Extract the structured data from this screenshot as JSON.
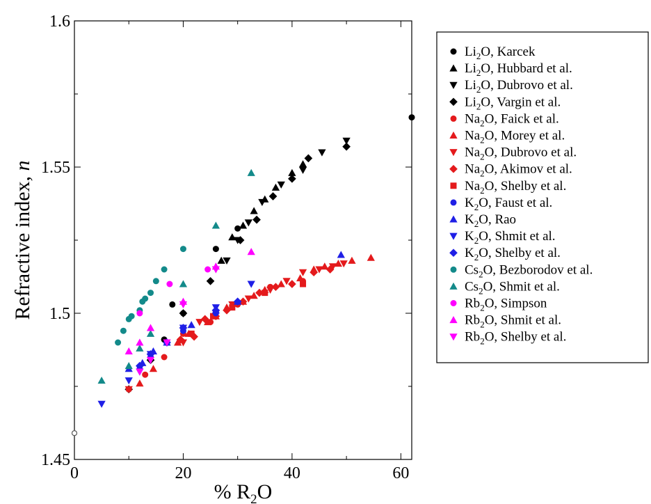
{
  "chart_data": {
    "type": "scatter",
    "title": "",
    "xlabel": {
      "pre": "% R",
      "sub": "2",
      "post": "O"
    },
    "ylabel": {
      "pre": "Refractive index, ",
      "italic": "n"
    },
    "xlim": [
      0,
      62
    ],
    "ylim": [
      1.45,
      1.6
    ],
    "xticks": [
      0,
      20,
      40,
      60
    ],
    "yticks": [
      1.45,
      1.5,
      1.55,
      1.6
    ],
    "xtick_labels": [
      "0",
      "20",
      "40",
      "60"
    ],
    "ytick_labels": [
      "1.45",
      "1.5",
      "1.55",
      "1.6"
    ],
    "grid": false,
    "legend_position": "right",
    "reference_points": [
      {
        "label": "",
        "marker": "open-circle",
        "color": "#555555",
        "points": [
          [
            0,
            1.459
          ]
        ]
      }
    ],
    "series": [
      {
        "oxide": "Li",
        "sub": "2",
        "suffix": "O, Karcek",
        "marker": "circle",
        "color": "#000000",
        "points": [
          [
            62,
            1.567
          ],
          [
            30,
            1.529
          ],
          [
            26,
            1.522
          ],
          [
            18,
            1.503
          ],
          [
            20,
            1.5
          ],
          [
            16.5,
            1.491
          ],
          [
            10,
            1.474
          ]
        ]
      },
      {
        "oxide": "Li",
        "sub": "2",
        "suffix": "O, Hubbard et al.",
        "marker": "triangle-up",
        "color": "#000000",
        "points": [
          [
            42,
            1.551
          ],
          [
            40,
            1.548
          ],
          [
            37,
            1.543
          ],
          [
            35,
            1.539
          ],
          [
            33,
            1.535
          ],
          [
            31,
            1.53
          ],
          [
            29,
            1.526
          ],
          [
            27,
            1.518
          ]
        ]
      },
      {
        "oxide": "Li",
        "sub": "2",
        "suffix": "O, Dubrovo et al.",
        "marker": "triangle-down",
        "color": "#000000",
        "points": [
          [
            50,
            1.559
          ],
          [
            45.5,
            1.555
          ],
          [
            42,
            1.549
          ],
          [
            38,
            1.544
          ],
          [
            34.5,
            1.538
          ],
          [
            32,
            1.531
          ],
          [
            30,
            1.525
          ],
          [
            28,
            1.518
          ]
        ]
      },
      {
        "oxide": "Li",
        "sub": "2",
        "suffix": "O, Vargin et al.",
        "marker": "diamond",
        "color": "#000000",
        "points": [
          [
            50,
            1.557
          ],
          [
            43,
            1.553
          ],
          [
            40,
            1.546
          ],
          [
            36.5,
            1.54
          ],
          [
            33.5,
            1.532
          ],
          [
            30.5,
            1.525
          ],
          [
            25,
            1.511
          ],
          [
            20,
            1.5
          ],
          [
            14,
            1.484
          ],
          [
            10,
            1.474
          ]
        ]
      },
      {
        "oxide": "Na",
        "sub": "2",
        "suffix": "O, Faick et al.",
        "marker": "circle",
        "color": "#e41a1c",
        "points": [
          [
            42,
            1.511
          ],
          [
            36,
            1.509
          ],
          [
            30,
            1.503
          ],
          [
            25,
            1.497
          ],
          [
            20,
            1.493
          ],
          [
            16.5,
            1.485
          ],
          [
            13,
            1.479
          ],
          [
            10,
            1.474
          ]
        ]
      },
      {
        "oxide": "Na",
        "sub": "2",
        "suffix": "O, Morey et al.",
        "marker": "triangle-up",
        "color": "#e41a1c",
        "points": [
          [
            54.5,
            1.519
          ],
          [
            51,
            1.518
          ],
          [
            48.5,
            1.517
          ],
          [
            46,
            1.516
          ],
          [
            44,
            1.515
          ],
          [
            41.5,
            1.512
          ],
          [
            38,
            1.51
          ],
          [
            35,
            1.508
          ],
          [
            33,
            1.506
          ],
          [
            31,
            1.504
          ],
          [
            28,
            1.502
          ],
          [
            26,
            1.499
          ],
          [
            24.5,
            1.497
          ],
          [
            21,
            1.493
          ],
          [
            19,
            1.49
          ],
          [
            14.5,
            1.481
          ],
          [
            12,
            1.476
          ]
        ]
      },
      {
        "oxide": "Na",
        "sub": "2",
        "suffix": "O, Dubrovo et al.",
        "marker": "triangle-down",
        "color": "#e41a1c",
        "points": [
          [
            49.5,
            1.517
          ],
          [
            47.5,
            1.516
          ],
          [
            45,
            1.515
          ],
          [
            42,
            1.514
          ],
          [
            39,
            1.511
          ],
          [
            36,
            1.508
          ],
          [
            32,
            1.505
          ],
          [
            29,
            1.503
          ],
          [
            26,
            1.5
          ],
          [
            23,
            1.497
          ],
          [
            20,
            1.49
          ],
          [
            10,
            1.474
          ]
        ]
      },
      {
        "oxide": "Na",
        "sub": "2",
        "suffix": "O, Akimov et al.",
        "marker": "diamond",
        "color": "#e41a1c",
        "points": [
          [
            47,
            1.515
          ],
          [
            44,
            1.514
          ],
          [
            40,
            1.51
          ],
          [
            37,
            1.509
          ],
          [
            34,
            1.507
          ],
          [
            31,
            1.504
          ],
          [
            28,
            1.501
          ],
          [
            26,
            1.499
          ],
          [
            24,
            1.498
          ],
          [
            22,
            1.492
          ],
          [
            19.5,
            1.491
          ]
        ]
      },
      {
        "oxide": "Na",
        "sub": "2",
        "suffix": "O, Shelby et al.",
        "marker": "square",
        "color": "#e41a1c",
        "points": [
          [
            42,
            1.51
          ],
          [
            35,
            1.507
          ],
          [
            29,
            1.502
          ],
          [
            25.5,
            1.499
          ],
          [
            21.5,
            1.493
          ]
        ]
      },
      {
        "oxide": "K",
        "sub": "2",
        "suffix": "O, Faust et al.",
        "marker": "circle",
        "color": "#1f1fe6",
        "points": [
          [
            26,
            1.5
          ],
          [
            20,
            1.494
          ],
          [
            17,
            1.49
          ],
          [
            14,
            1.485
          ],
          [
            12,
            1.481
          ]
        ]
      },
      {
        "oxide": "K",
        "sub": "2",
        "suffix": "O, Rao",
        "marker": "triangle-up",
        "color": "#1f1fe6",
        "points": [
          [
            49,
            1.52
          ],
          [
            30,
            1.504
          ],
          [
            26,
            1.501
          ],
          [
            21.5,
            1.496
          ],
          [
            17,
            1.49
          ],
          [
            14.5,
            1.487
          ],
          [
            12.5,
            1.483
          ],
          [
            10,
            1.481
          ]
        ]
      },
      {
        "oxide": "K",
        "sub": "2",
        "suffix": "O, Shmit et al.",
        "marker": "triangle-down",
        "color": "#1f1fe6",
        "points": [
          [
            32.5,
            1.51
          ],
          [
            26,
            1.502
          ],
          [
            20,
            1.495
          ],
          [
            14,
            1.486
          ],
          [
            12,
            1.48
          ],
          [
            10,
            1.477
          ],
          [
            5,
            1.469
          ]
        ]
      },
      {
        "oxide": "K",
        "sub": "2",
        "suffix": "O, Shelby et al.",
        "marker": "diamond",
        "color": "#1f1fe6",
        "points": [
          [
            30,
            1.504
          ],
          [
            26,
            1.501
          ],
          [
            20,
            1.495
          ],
          [
            17,
            1.49
          ],
          [
            14,
            1.486
          ],
          [
            12,
            1.482
          ]
        ]
      },
      {
        "oxide": "Cs",
        "sub": "2",
        "suffix": "O, Bezborodov et al.",
        "marker": "circle",
        "color": "#138a8a",
        "points": [
          [
            20,
            1.522
          ],
          [
            16.5,
            1.515
          ],
          [
            15,
            1.511
          ],
          [
            14,
            1.507
          ],
          [
            13,
            1.505
          ],
          [
            12.5,
            1.504
          ],
          [
            12,
            1.501
          ],
          [
            10.5,
            1.499
          ],
          [
            10,
            1.498
          ],
          [
            9,
            1.494
          ],
          [
            8,
            1.49
          ]
        ]
      },
      {
        "oxide": "Cs",
        "sub": "2",
        "suffix": "O, Shmit et al.",
        "marker": "triangle-up",
        "color": "#138a8a",
        "points": [
          [
            32.5,
            1.548
          ],
          [
            26,
            1.53
          ],
          [
            20,
            1.51
          ],
          [
            14,
            1.493
          ],
          [
            12,
            1.488
          ],
          [
            10,
            1.482
          ],
          [
            5,
            1.477
          ]
        ]
      },
      {
        "oxide": "Rb",
        "sub": "2",
        "suffix": "O, Simpson",
        "marker": "circle",
        "color": "#ff00ff",
        "points": [
          [
            24.5,
            1.515
          ],
          [
            17.5,
            1.51
          ],
          [
            12,
            1.5
          ]
        ]
      },
      {
        "oxide": "Rb",
        "sub": "2",
        "suffix": "O, Shmit et al.",
        "marker": "triangle-up",
        "color": "#ff00ff",
        "points": [
          [
            32.5,
            1.521
          ],
          [
            26,
            1.516
          ],
          [
            20,
            1.504
          ],
          [
            14,
            1.495
          ],
          [
            12,
            1.49
          ],
          [
            10,
            1.487
          ]
        ]
      },
      {
        "oxide": "Rb",
        "sub": "2",
        "suffix": "O, Shelby et al.",
        "marker": "triangle-down",
        "color": "#ff00ff",
        "points": [
          [
            26,
            1.515
          ],
          [
            20,
            1.503
          ],
          [
            17,
            1.49
          ],
          [
            14,
            1.484
          ],
          [
            12,
            1.48
          ]
        ]
      }
    ]
  }
}
